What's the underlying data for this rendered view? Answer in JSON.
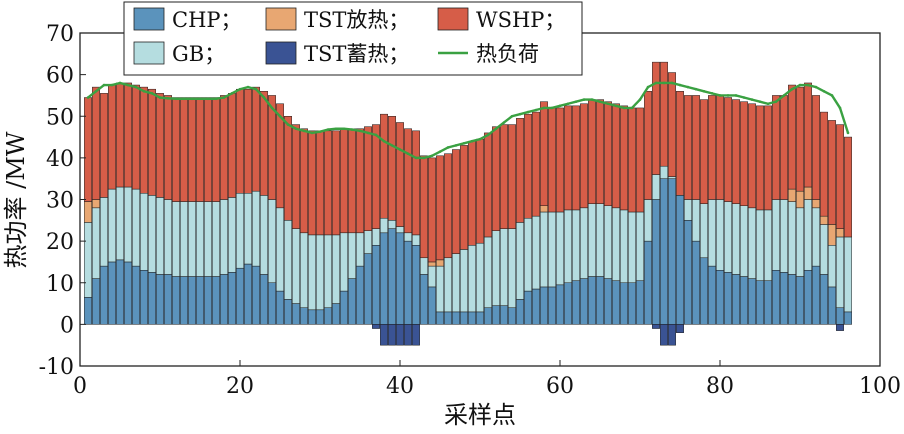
{
  "colors": {
    "chp": "#5b93bc",
    "gb": "#b5dde0",
    "tst_release": "#e8a772",
    "tst_store": "#3a5394",
    "wshp": "#d65d48",
    "heat_load": "#3aa142"
  },
  "chart_data": {
    "type": "bar",
    "stacked": true,
    "xlabel": "采样点",
    "ylabel": "热功率 /MW",
    "xlim": [
      0,
      100
    ],
    "ylim": [
      -10,
      70
    ],
    "xticks": [
      0,
      20,
      40,
      60,
      80,
      100
    ],
    "yticks": [
      -10,
      0,
      10,
      20,
      30,
      40,
      50,
      60,
      70
    ],
    "grid": false,
    "legend_position": "top-left",
    "x": [
      1,
      2,
      3,
      4,
      5,
      6,
      7,
      8,
      9,
      10,
      11,
      12,
      13,
      14,
      15,
      16,
      17,
      18,
      19,
      20,
      21,
      22,
      23,
      24,
      25,
      26,
      27,
      28,
      29,
      30,
      31,
      32,
      33,
      34,
      35,
      36,
      37,
      38,
      39,
      40,
      41,
      42,
      43,
      44,
      45,
      46,
      47,
      48,
      49,
      50,
      51,
      52,
      53,
      54,
      55,
      56,
      57,
      58,
      59,
      60,
      61,
      62,
      63,
      64,
      65,
      66,
      67,
      68,
      69,
      70,
      71,
      72,
      73,
      74,
      75,
      76,
      77,
      78,
      79,
      80,
      81,
      82,
      83,
      84,
      85,
      86,
      87,
      88,
      89,
      90,
      91,
      92,
      93,
      94,
      95,
      96
    ],
    "series": [
      {
        "name": "CHP;",
        "key": "chp",
        "kind": "bar",
        "values": [
          6.5,
          11,
          14,
          15,
          15.5,
          15,
          14,
          13,
          12.5,
          12,
          12,
          11.5,
          11.5,
          11.5,
          11.5,
          11.5,
          11.5,
          12,
          12.5,
          13.5,
          14.5,
          14,
          12,
          10,
          8,
          6,
          5,
          4,
          3.5,
          3.5,
          4,
          5,
          8,
          11,
          14,
          17,
          19,
          22,
          23,
          22,
          20,
          19,
          12,
          9,
          3,
          3,
          3,
          3,
          3,
          3,
          4,
          4.5,
          4.5,
          4,
          6,
          8,
          8.5,
          9,
          9,
          9.5,
          10,
          10.5,
          11,
          11.5,
          11.5,
          11,
          10.5,
          10,
          10,
          10.5,
          20,
          30,
          35,
          35,
          31,
          25,
          20,
          16,
          14,
          13,
          12.5,
          12,
          11.5,
          11,
          10.5,
          10.5,
          13,
          12.5,
          12,
          11.5,
          13,
          14,
          12,
          9,
          4,
          3
        ]
      },
      {
        "name": "GB;",
        "key": "gb",
        "kind": "bar",
        "values": [
          18,
          17,
          16.5,
          17.5,
          17.5,
          18,
          18.5,
          18.5,
          18.5,
          18.5,
          18,
          18,
          18,
          18,
          18,
          18,
          18,
          18,
          18,
          18,
          17,
          18,
          19,
          20,
          20,
          19,
          18,
          18,
          18,
          18,
          17.5,
          16.5,
          14,
          11,
          8,
          5.5,
          4,
          3.5,
          2,
          1.5,
          2,
          2.5,
          4,
          5,
          11,
          13,
          14,
          15,
          16,
          16.5,
          17,
          18,
          18.5,
          19,
          18.5,
          17.5,
          17.5,
          18,
          18,
          17.5,
          17.5,
          17,
          17,
          17.5,
          17.5,
          17.5,
          17.5,
          17.5,
          17,
          16.5,
          10,
          6,
          3,
          0.5,
          0,
          5,
          10,
          13,
          16,
          17,
          17,
          17,
          17,
          17,
          17,
          17,
          17,
          17.5,
          17.5,
          16.5,
          17,
          14,
          12,
          10,
          17,
          18
        ]
      },
      {
        "name": "TST放热;",
        "key": "tst_release",
        "kind": "bar",
        "values": [
          5,
          2,
          0,
          0,
          0,
          0,
          0,
          0,
          0,
          0,
          0,
          0,
          0,
          0,
          0,
          0,
          0,
          0,
          0,
          0,
          0,
          0,
          0,
          0,
          0,
          0,
          0,
          0,
          0,
          0,
          0,
          0,
          0,
          0,
          0,
          0,
          0,
          0,
          0,
          0,
          0,
          0,
          0,
          1,
          1.5,
          0,
          0,
          0,
          0,
          0,
          0,
          0,
          0,
          0,
          0,
          0,
          0,
          1.5,
          0,
          0,
          0,
          0,
          0,
          0,
          0,
          0,
          0,
          0,
          0,
          0,
          0,
          0,
          0,
          0,
          0,
          0,
          0,
          0,
          0,
          0,
          0,
          0,
          0,
          0,
          0,
          0,
          0,
          0,
          3,
          4,
          3,
          2,
          2,
          5,
          2,
          0
        ]
      },
      {
        "name": "WSHP;",
        "key": "wshp",
        "kind": "bar",
        "values": [
          25,
          27,
          25,
          25,
          25,
          25,
          25,
          25.5,
          25.5,
          25,
          25,
          25,
          25,
          25,
          25,
          25,
          25,
          25,
          25,
          25,
          25,
          25,
          25,
          25,
          25,
          25,
          25,
          25,
          25,
          25,
          25,
          25,
          25,
          25,
          25,
          25,
          25,
          25,
          25,
          25,
          25,
          25,
          24.5,
          25,
          25,
          25,
          25,
          25,
          25,
          25,
          25,
          25,
          25,
          25,
          25,
          25,
          25,
          25,
          25,
          25,
          25,
          25,
          25,
          25,
          25,
          25,
          25,
          25,
          25,
          25,
          26,
          27,
          25,
          25,
          25,
          25,
          25,
          25,
          25,
          25,
          25,
          25,
          25,
          25,
          25,
          25,
          25,
          25,
          25,
          25,
          25,
          25,
          25,
          25,
          25,
          24
        ]
      },
      {
        "name": "TST蓄热;",
        "key": "tst_store",
        "kind": "bar",
        "values": [
          0,
          0,
          0,
          0,
          0,
          0,
          0,
          0,
          0,
          0,
          0,
          0,
          0,
          0,
          0,
          0,
          0,
          0,
          0,
          0,
          0,
          0,
          0,
          0,
          0,
          0,
          0,
          0,
          0,
          0,
          0,
          0,
          0,
          0,
          0,
          0,
          -1,
          -5,
          -5,
          -5,
          -5,
          -5,
          0,
          0,
          0,
          0,
          0,
          0,
          0,
          0,
          0,
          0,
          0,
          0,
          0,
          0,
          0,
          0,
          0,
          0,
          0,
          0,
          0,
          0,
          0,
          0,
          0,
          0,
          0,
          0,
          0,
          -1,
          -5,
          -5,
          -2,
          0,
          0,
          0,
          0,
          0,
          0,
          0,
          0,
          0,
          0,
          0,
          0,
          0,
          0,
          0,
          0,
          0,
          0,
          0,
          -1.5,
          0
        ]
      },
      {
        "name": "热负荷",
        "key": "heat_load",
        "kind": "line",
        "values": [
          54.5,
          56,
          57.5,
          57.5,
          58,
          57.5,
          57,
          56,
          55.5,
          54.5,
          54.3,
          54.2,
          54.2,
          54.2,
          54.2,
          54.2,
          54.2,
          54.5,
          55.5,
          56.5,
          57,
          56.5,
          54.5,
          52,
          50,
          48,
          47,
          46.5,
          46,
          46.3,
          46.8,
          47,
          47,
          46.8,
          46.5,
          46,
          45.5,
          44,
          43,
          42,
          41,
          40,
          40,
          40.5,
          41.5,
          42.5,
          43,
          43.5,
          44,
          44.5,
          45.5,
          47,
          48.5,
          50,
          50.5,
          51,
          51.5,
          52,
          52,
          52.5,
          53,
          53.5,
          54,
          54,
          53.5,
          53,
          52.5,
          52,
          52,
          54,
          57,
          58,
          58,
          58,
          57.5,
          57,
          56.5,
          56,
          55.5,
          55,
          55,
          55,
          54.5,
          54,
          53.5,
          53,
          53.5,
          55,
          56.5,
          57.5,
          57.5,
          57,
          56,
          55,
          52,
          46
        ]
      }
    ],
    "legend": [
      {
        "label": "CHP；",
        "key": "chp",
        "kind": "bar"
      },
      {
        "label": "TST放热；",
        "key": "tst_release",
        "kind": "bar"
      },
      {
        "label": "WSHP；",
        "key": "wshp",
        "kind": "bar"
      },
      {
        "label": "GB；",
        "key": "gb",
        "kind": "bar"
      },
      {
        "label": "TST蓄热；",
        "key": "tst_store",
        "kind": "bar"
      },
      {
        "label": "热负荷",
        "key": "heat_load",
        "kind": "line"
      }
    ]
  }
}
